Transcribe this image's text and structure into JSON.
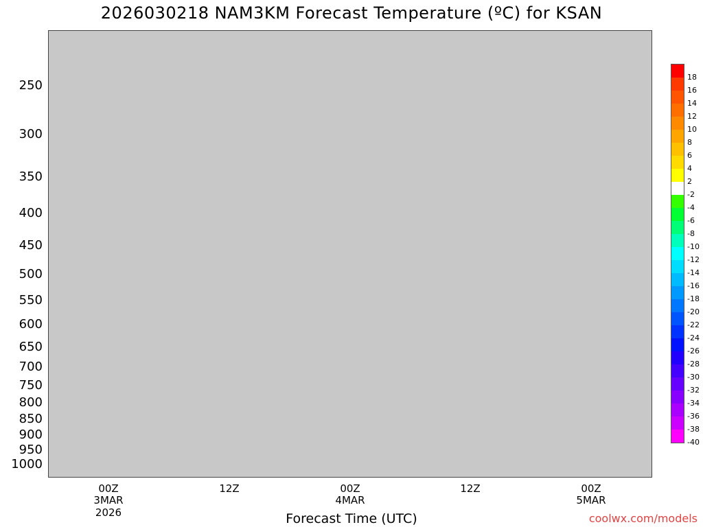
{
  "title": "2026030218 NAM3KM Forecast Temperature (ºC) for KSAN",
  "chart_data": {
    "type": "heatmap",
    "title": "2026030218 NAM3KM Forecast Temperature (ºC) for KSAN",
    "xlabel": "Forecast Time (UTC)",
    "ylabel": "",
    "y_ticks": [
      "250",
      "300",
      "350",
      "400",
      "450",
      "500",
      "550",
      "600",
      "650",
      "700",
      "750",
      "800",
      "850",
      "900",
      "950",
      "1000"
    ],
    "x_ticks": [
      {
        "label": "00Z",
        "sub": "3MAR",
        "sub2": "2026"
      },
      {
        "label": "12Z",
        "sub": "",
        "sub2": ""
      },
      {
        "label": "00Z",
        "sub": "4MAR",
        "sub2": ""
      },
      {
        "label": "12Z",
        "sub": "",
        "sub2": ""
      },
      {
        "label": "00Z",
        "sub": "5MAR",
        "sub2": ""
      }
    ],
    "colorbar": {
      "labels": [
        "18",
        "16",
        "14",
        "12",
        "10",
        "8",
        "6",
        "4",
        "2",
        "-2",
        "-4",
        "-6",
        "-8",
        "-10",
        "-12",
        "-14",
        "-16",
        "-18",
        "-20",
        "-22",
        "-24",
        "-26",
        "-28",
        "-30",
        "-32",
        "-34",
        "-36",
        "-38",
        "-40"
      ],
      "colors": [
        "#ff0000",
        "#ff3a00",
        "#ff5500",
        "#ff6f00",
        "#ff8a00",
        "#ffa500",
        "#ffc000",
        "#ffdb00",
        "#ffff00",
        "#ffffff",
        "#33ff00",
        "#00ff33",
        "#00ff77",
        "#00ffbb",
        "#00ffff",
        "#00ddff",
        "#00bbff",
        "#0099ff",
        "#0077ff",
        "#0055ff",
        "#0033ff",
        "#0011ff",
        "#2200ff",
        "#4400ff",
        "#6600ff",
        "#8800ff",
        "#aa00ff",
        "#cc00ff",
        "#ff00ff"
      ]
    }
  },
  "credit": "coolwx.com/models"
}
